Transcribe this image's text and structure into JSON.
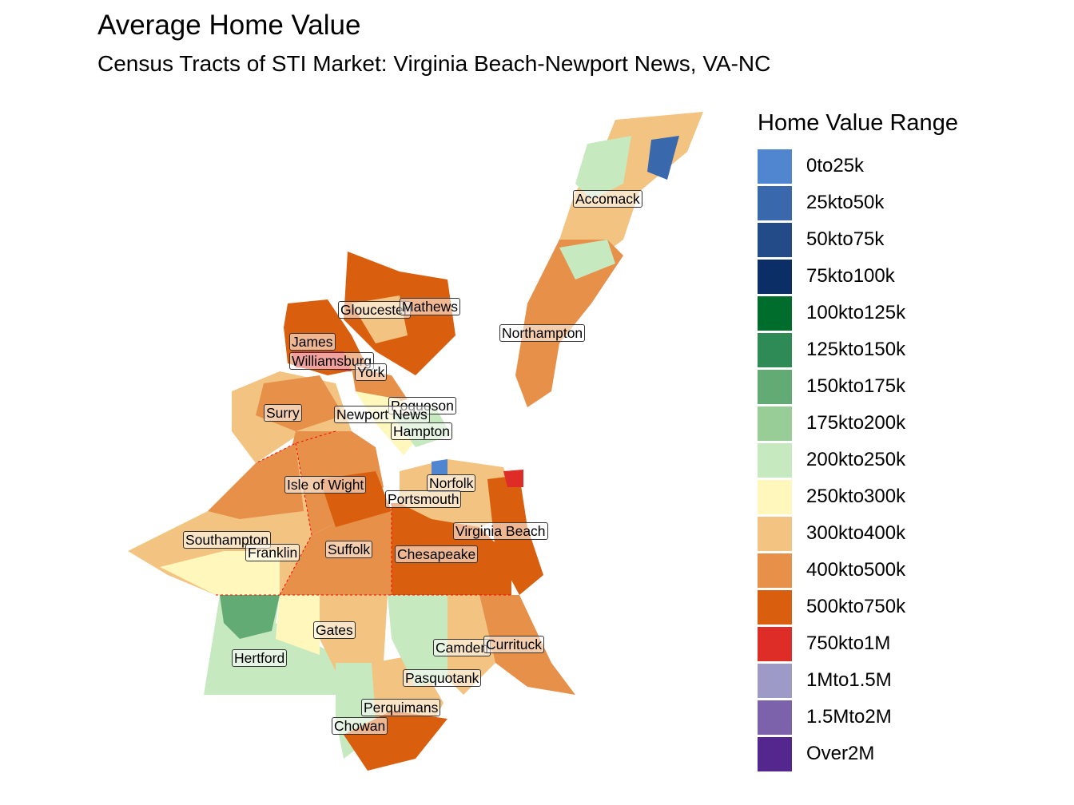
{
  "title": "Average Home Value",
  "subtitle": "Census Tracts of STI Market: Virginia Beach-Newport News, VA-NC",
  "legend": {
    "title": "Home Value Range",
    "items": [
      {
        "label": "0to25k",
        "color": "#4f86cf"
      },
      {
        "label": "25kto50k",
        "color": "#3a68ad"
      },
      {
        "label": "50kto75k",
        "color": "#234b88"
      },
      {
        "label": "75kto100k",
        "color": "#0b2e66"
      },
      {
        "label": "100kto125k",
        "color": "#006d2c"
      },
      {
        "label": "125kto150k",
        "color": "#2f8b55"
      },
      {
        "label": "150kto175k",
        "color": "#63ab74"
      },
      {
        "label": "175kto200k",
        "color": "#99cd98"
      },
      {
        "label": "200kto250k",
        "color": "#c7e9c0"
      },
      {
        "label": "250kto300k",
        "color": "#fff7bc"
      },
      {
        "label": "300kto400k",
        "color": "#f2c381"
      },
      {
        "label": "400kto500k",
        "color": "#e6904a"
      },
      {
        "label": "500kto750k",
        "color": "#d95f0e"
      },
      {
        "label": "750kto1M",
        "color": "#de2d26"
      },
      {
        "label": "1Mto1.5M",
        "color": "#9e9ac8"
      },
      {
        "label": "1.5Mto2M",
        "color": "#7b62ab"
      },
      {
        "label": "Over2M",
        "color": "#54278f"
      }
    ]
  },
  "localities": [
    "Accomack",
    "Northampton",
    "Gloucester",
    "Mathews",
    "James",
    "Williamsburg",
    "York",
    "Poquoson",
    "Newport News",
    "Hampton",
    "Surry",
    "Isle of Wight",
    "Norfolk",
    "Portsmouth",
    "Virginia Beach",
    "Southampton",
    "Franklin",
    "Suffolk",
    "Chesapeake",
    "Gates",
    "Hertford",
    "Camden",
    "Currituck",
    "Pasquotank",
    "Perquimans",
    "Chowan"
  ]
}
